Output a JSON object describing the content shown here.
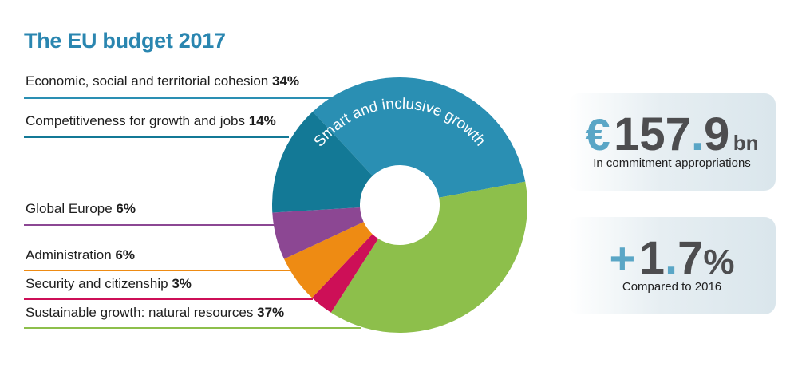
{
  "title": "The EU budget 2017",
  "center_label": "Smart and inclusive growth",
  "chart_data": {
    "type": "pie",
    "title": "The EU budget 2017",
    "slices": [
      {
        "label": "Economic, social and territorial cohesion",
        "value": 34,
        "display": "34%",
        "color": "#2a8fb3"
      },
      {
        "label": "Competitiveness for growth and jobs",
        "value": 14,
        "display": "14%",
        "color": "#137996"
      },
      {
        "label": "Global Europe",
        "value": 6,
        "display": "6%",
        "color": "#8c4793"
      },
      {
        "label": "Administration",
        "value": 6,
        "display": "6%",
        "color": "#ee8b13"
      },
      {
        "label": "Security and citizenship",
        "value": 3,
        "display": "3%",
        "color": "#cd0f57"
      },
      {
        "label": "Sustainable growth: natural resources",
        "value": 37,
        "display": "37%",
        "color": "#8dbf4b"
      }
    ]
  },
  "amount": {
    "currency": "€",
    "integer": "157",
    "dot": ".",
    "decimal": "9",
    "unit": "bn",
    "caption": "In commitment appropriations"
  },
  "change": {
    "sign": "+",
    "integer": "1",
    "dot": ".",
    "decimal": "7",
    "unit": "%",
    "caption": "Compared to 2016"
  }
}
